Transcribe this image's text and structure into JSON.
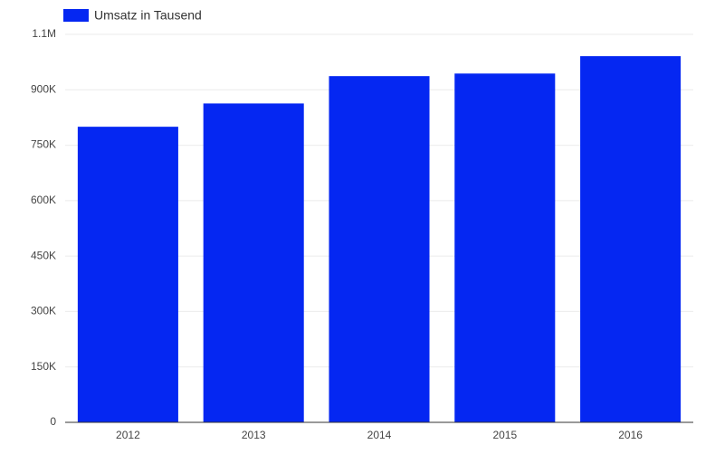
{
  "chart_data": {
    "type": "bar",
    "categories": [
      "2012",
      "2013",
      "2014",
      "2015",
      "2016"
    ],
    "series": [
      {
        "name": "Umsatz in Tausend",
        "color": "#0527f2",
        "values": [
          800000,
          863000,
          937000,
          944000,
          991000
        ]
      }
    ],
    "ylim": [
      0,
      1050000
    ],
    "yticks": [
      0,
      {
        "value": 150000,
        "label": "150K"
      },
      {
        "value": 300000,
        "label": "300K"
      },
      {
        "value": 450000,
        "label": "450K"
      },
      {
        "value": 600000,
        "label": "600K"
      },
      {
        "value": 750000,
        "label": "750K"
      },
      {
        "value": 900000,
        "label": "900K"
      },
      {
        "value": 1050000,
        "label": "1.1M"
      }
    ],
    "grid": true,
    "legend": "top-left"
  }
}
